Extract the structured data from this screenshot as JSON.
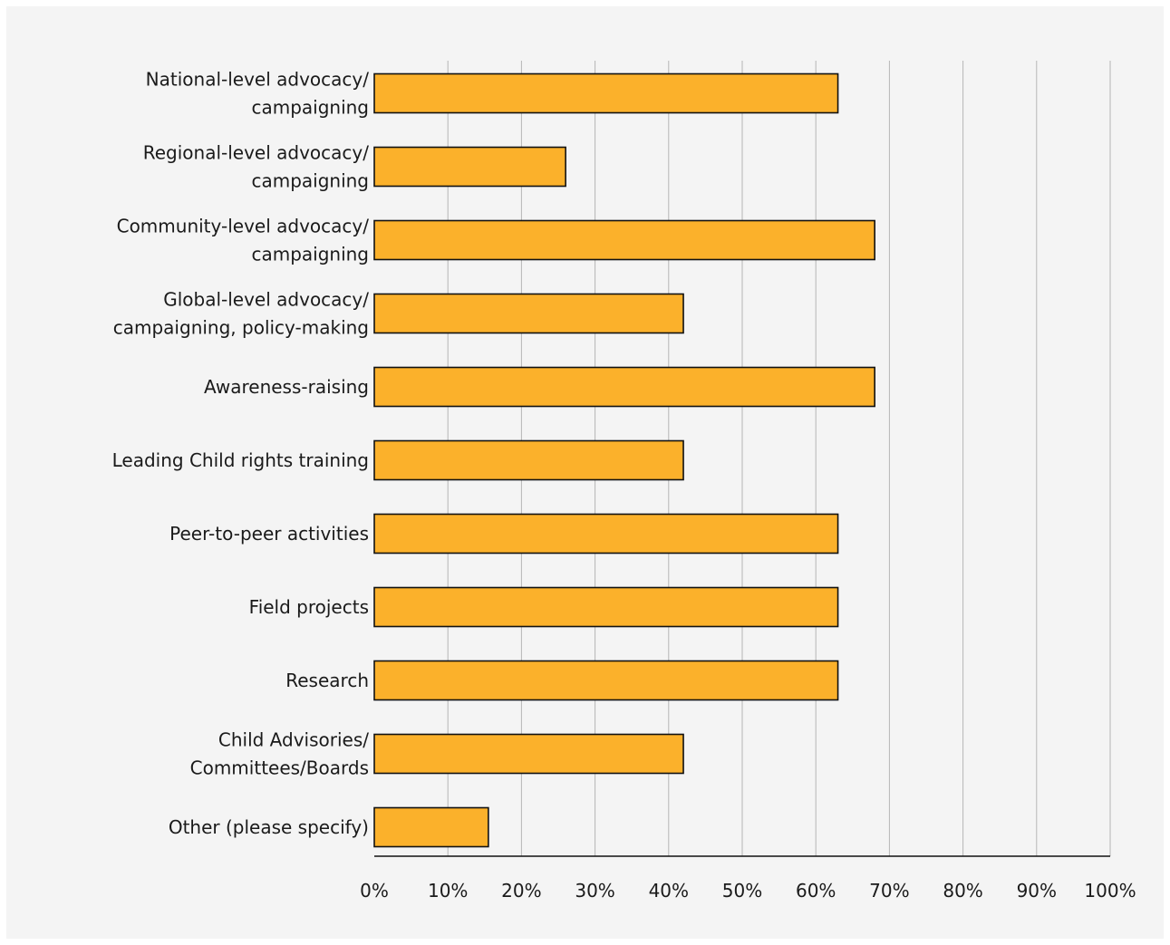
{
  "chart_data": {
    "type": "bar",
    "orientation": "horizontal",
    "title": "",
    "xlabel": "",
    "ylabel": "",
    "xlim": [
      0,
      100
    ],
    "grid": true,
    "bar_color": "#fbb12b",
    "bar_outline": "#111111",
    "ticks": [
      "0%",
      "10%",
      "20%",
      "30%",
      "40%",
      "50%",
      "60%",
      "70%",
      "80%",
      "90%",
      "100%"
    ],
    "categories": [
      [
        "National-level advocacy/",
        "campaigning"
      ],
      [
        "Regional-level advocacy/",
        "campaigning"
      ],
      [
        "Community-level advocacy/",
        "campaigning"
      ],
      [
        "Global-level advocacy/",
        "campaigning, policy-making"
      ],
      [
        "Awareness-raising"
      ],
      [
        "Leading Child rights training"
      ],
      [
        "Peer-to-peer activities"
      ],
      [
        "Field projects"
      ],
      [
        "Research"
      ],
      [
        "Child Advisories/",
        "Committees/Boards"
      ],
      [
        "Other (please specify)"
      ]
    ],
    "values": [
      63,
      26,
      68,
      42,
      68,
      42,
      63,
      63,
      63,
      42,
      15.5
    ]
  }
}
